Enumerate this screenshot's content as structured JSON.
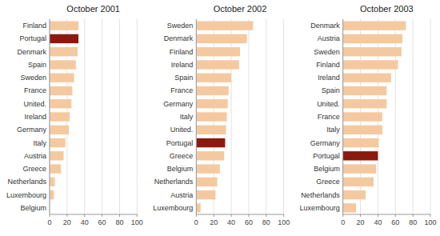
{
  "chart_data": [
    {
      "type": "bar",
      "orientation": "horizontal",
      "title": "October 2001",
      "categories": [
        "Finland",
        "Portugal",
        "Denmark",
        "Spain",
        "Sweden",
        "France",
        "United.",
        "Ireland",
        "Germany",
        "Italy",
        "Austria",
        "Greece",
        "Netherlands",
        "Luxembourg",
        "Belgium"
      ],
      "values": [
        33,
        33,
        32,
        30,
        28,
        26,
        25,
        23,
        22,
        18,
        16,
        13,
        6,
        5,
        0
      ],
      "colors": [
        "#F5C9A0",
        "#8B1A0E",
        "#F5C9A0",
        "#F5C9A0",
        "#F5C9A0",
        "#F5C9A0",
        "#F5C9A0",
        "#F5C9A0",
        "#F5C9A0",
        "#F5C9A0",
        "#F5C9A0",
        "#F5C9A0",
        "#F5C9A0",
        "#F5C9A0",
        "#F5C9A0"
      ],
      "xlim": [
        0,
        100
      ],
      "xticks": [
        0,
        20,
        40,
        60,
        80,
        100
      ],
      "grid": true
    },
    {
      "type": "bar",
      "orientation": "horizontal",
      "title": "October 2002",
      "categories": [
        "Sweden",
        "Denmark",
        "Finland",
        "Ireland",
        "Spain",
        "France",
        "Germany",
        "Italy",
        "United.",
        "Portugal",
        "Greece",
        "Belgium",
        "Netherlands",
        "Austria",
        "Luxembourg"
      ],
      "values": [
        65,
        58,
        50,
        49,
        40,
        37,
        36,
        35,
        34,
        33,
        32,
        27,
        24,
        22,
        5
      ],
      "colors": [
        "#F5C9A0",
        "#F5C9A0",
        "#F5C9A0",
        "#F5C9A0",
        "#F5C9A0",
        "#F5C9A0",
        "#F5C9A0",
        "#F5C9A0",
        "#F5C9A0",
        "#8B1A0E",
        "#F5C9A0",
        "#F5C9A0",
        "#F5C9A0",
        "#F5C9A0",
        "#F5C9A0"
      ],
      "xlim": [
        0,
        100
      ],
      "xticks": [
        0,
        20,
        40,
        60,
        80,
        100
      ],
      "grid": true
    },
    {
      "type": "bar",
      "orientation": "horizontal",
      "title": "October 2003",
      "categories": [
        "Denmark",
        "Austria",
        "Sweden",
        "Finland",
        "Ireland",
        "Spain",
        "United.",
        "France",
        "Italy",
        "Germany",
        "Portugal",
        "Belgium",
        "Greece",
        "Netherlands",
        "Luxembourg"
      ],
      "values": [
        72,
        68,
        67,
        63,
        55,
        50,
        50,
        45,
        45,
        41,
        40,
        38,
        35,
        26,
        15
      ],
      "colors": [
        "#F5C9A0",
        "#F5C9A0",
        "#F5C9A0",
        "#F5C9A0",
        "#F5C9A0",
        "#F5C9A0",
        "#F5C9A0",
        "#F5C9A0",
        "#F5C9A0",
        "#F5C9A0",
        "#8B1A0E",
        "#F5C9A0",
        "#F5C9A0",
        "#F5C9A0",
        "#F5C9A0"
      ],
      "xlim": [
        0,
        100
      ],
      "xticks": [
        0,
        20,
        40,
        60,
        80,
        100
      ],
      "grid": true
    }
  ]
}
